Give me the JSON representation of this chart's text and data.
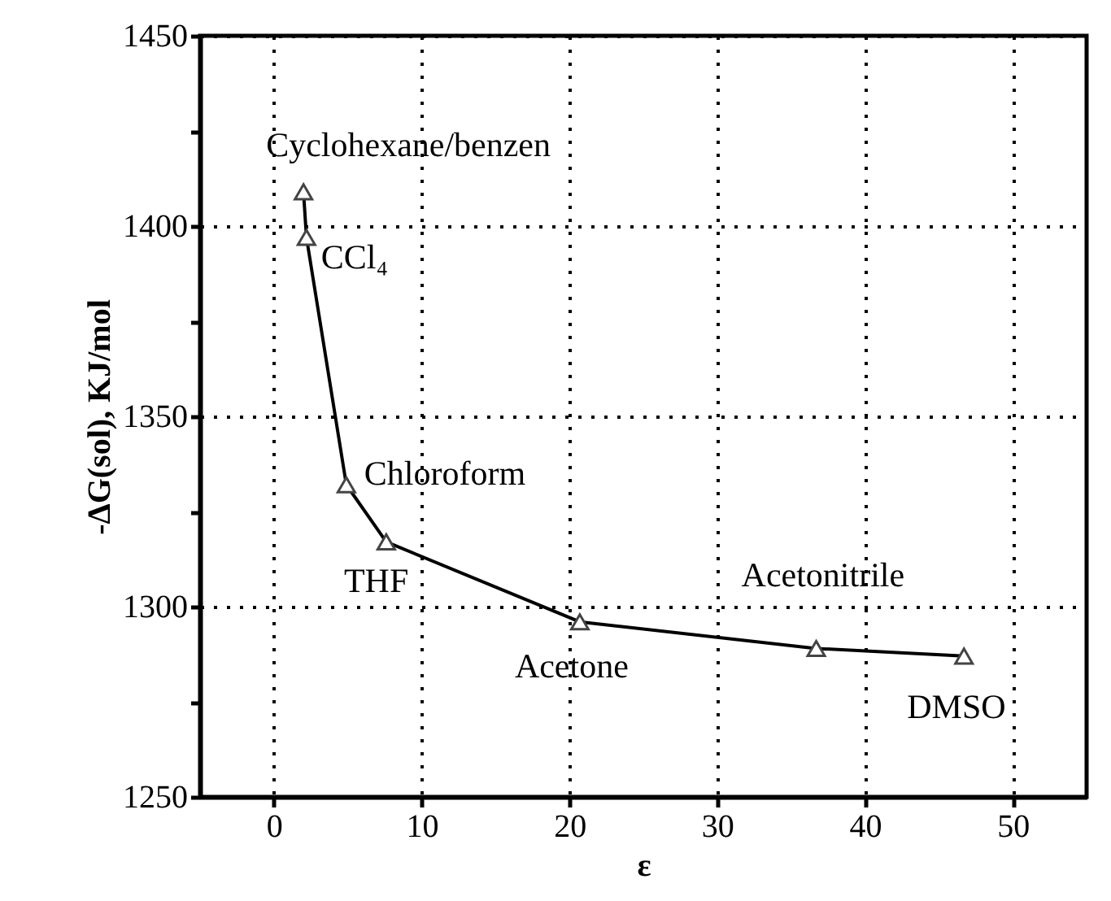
{
  "chart_data": {
    "type": "line",
    "xlabel": "ε",
    "ylabel": "-ΔG(sol), KJ/mol",
    "x": [
      2.0,
      2.2,
      4.9,
      7.6,
      20.7,
      36.7,
      46.7
    ],
    "series": [
      {
        "color": "#000000",
        "values": [
          1409,
          1397,
          1332,
          1317,
          1296,
          1289,
          1287
        ]
      }
    ],
    "xlim": [
      -5,
      55
    ],
    "xticks": [
      0,
      10,
      20,
      30,
      40,
      50
    ],
    "ylim": [
      1250,
      1450
    ],
    "yticks": [
      1250,
      {
        "value": 1275,
        "label": null
      },
      1300,
      {
        "value": 1325,
        "label": null
      },
      1350,
      {
        "value": 1375,
        "label": null
      },
      1400,
      {
        "value": 1425,
        "label": null
      },
      1450
    ],
    "grid": true,
    "marker": "triangle",
    "line_style": "solid",
    "annotations": [
      {
        "text": "Cyclohexane/benzen",
        "x": 2.0,
        "y": 1409
      },
      {
        "text": "CCl₄",
        "x": 2.2,
        "y": 1397
      },
      {
        "text": "Chloroform",
        "x": 4.9,
        "y": 1332
      },
      {
        "text": "THF",
        "x": 7.6,
        "y": 1317
      },
      {
        "text": "Acetone",
        "x": 20.7,
        "y": 1296
      },
      {
        "text": "Acetonitrile",
        "x": 36.7,
        "y": 1289
      },
      {
        "text": "DMSO",
        "x": 46.7,
        "y": 1287
      }
    ]
  }
}
